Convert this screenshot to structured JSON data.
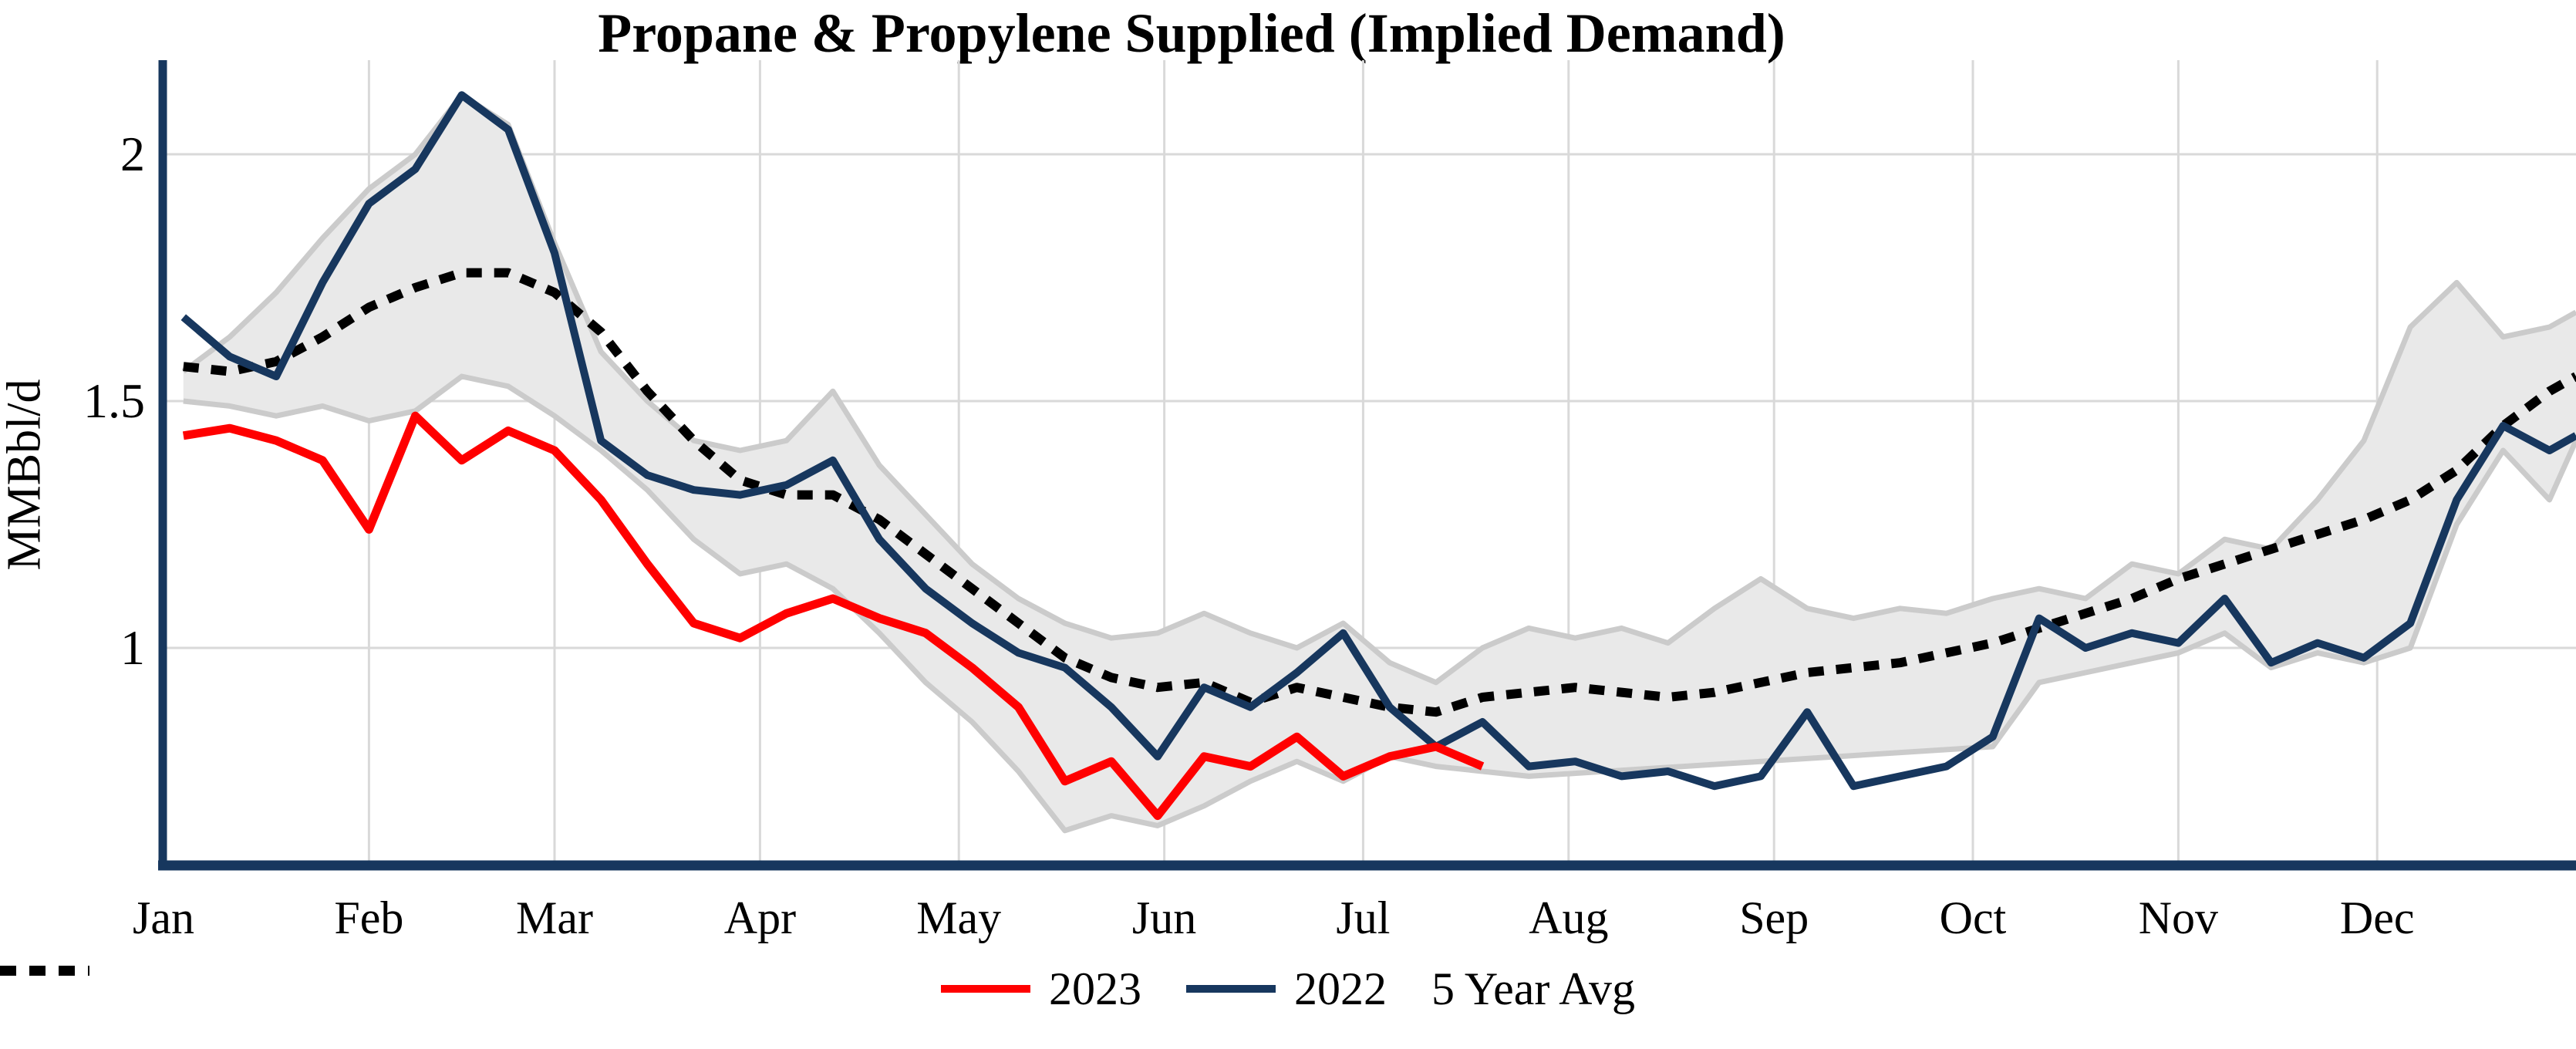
{
  "title": "Propane & Propylene Supplied (Implied Demand)",
  "y_axis": {
    "label": "MMBbl/d",
    "ticks": [
      "2",
      "1.5",
      "1"
    ],
    "tick_values": [
      2,
      1.5,
      1
    ]
  },
  "x_axis": {
    "months": [
      "Jan",
      "Feb",
      "Mar",
      "Apr",
      "May",
      "Jun",
      "Jul",
      "Aug",
      "Sep",
      "Oct",
      "Nov",
      "Dec"
    ],
    "month_start_days": [
      0,
      31,
      59,
      90,
      120,
      151,
      181,
      212,
      243,
      273,
      304,
      334
    ]
  },
  "legend": [
    {
      "label": "2023",
      "style": "solid",
      "color": "#ff0000"
    },
    {
      "label": "2022",
      "style": "solid",
      "color": "#17375e"
    },
    {
      "label": "5 Year Avg",
      "style": "dotted",
      "color": "#000000"
    }
  ],
  "colors": {
    "series_2023": "#ff0000",
    "series_2022": "#17375e",
    "five_year_avg": "#000000",
    "band_fill": "#e9e9e9",
    "band_edge": "#cbcbcb",
    "gridline": "#d9d9d9",
    "axis": "#17375e",
    "text": "#000000",
    "background": "#ffffff"
  },
  "chart_data": {
    "type": "line",
    "title": "Propane & Propylene Supplied (Implied Demand)",
    "xlabel": "",
    "ylabel": "MMBbl/d",
    "x_unit": "day of year (weekly data)",
    "ylim": [
      0.56,
      2.2
    ],
    "xlim_days": [
      0,
      364
    ],
    "grid": true,
    "legend_position": "bottom",
    "week_days": [
      3,
      10,
      17,
      24,
      31,
      38,
      45,
      52,
      59,
      66,
      73,
      80,
      87,
      94,
      101,
      108,
      115,
      122,
      129,
      136,
      143,
      150,
      157,
      164,
      171,
      178,
      185,
      192,
      199,
      206,
      213,
      220,
      227,
      234,
      241,
      248,
      255,
      262,
      269,
      276,
      283,
      290,
      297,
      304,
      311,
      318,
      325,
      332,
      339,
      346,
      353,
      360,
      364
    ],
    "series": [
      {
        "name": "2023",
        "color": "#ff0000",
        "style": "solid",
        "points": 29,
        "values": [
          1.43,
          1.445,
          1.42,
          1.38,
          1.24,
          1.47,
          1.38,
          1.44,
          1.4,
          1.3,
          1.17,
          1.05,
          1.02,
          1.07,
          1.1,
          1.06,
          1.03,
          0.96,
          0.88,
          0.73,
          0.77,
          0.66,
          0.78,
          0.76,
          0.82,
          0.74,
          0.78,
          0.8,
          0.76
        ]
      },
      {
        "name": "2022",
        "color": "#17375e",
        "style": "solid",
        "points": 53,
        "values": [
          1.67,
          1.59,
          1.55,
          1.74,
          1.9,
          1.97,
          2.12,
          2.05,
          1.8,
          1.42,
          1.35,
          1.32,
          1.31,
          1.33,
          1.38,
          1.22,
          1.12,
          1.05,
          0.99,
          0.96,
          0.88,
          0.78,
          0.92,
          0.88,
          0.95,
          1.03,
          0.88,
          0.8,
          0.85,
          0.76,
          0.77,
          0.74,
          0.75,
          0.72,
          0.74,
          0.87,
          0.72,
          0.74,
          0.76,
          0.82,
          1.06,
          1.0,
          1.03,
          1.01,
          1.1,
          0.97,
          1.01,
          0.98,
          1.05,
          1.3,
          1.45,
          1.4,
          1.43
        ]
      },
      {
        "name": "5 Year Avg",
        "color": "#000000",
        "style": "dotted",
        "points": 53,
        "values": [
          1.57,
          1.56,
          1.58,
          1.63,
          1.69,
          1.73,
          1.76,
          1.76,
          1.72,
          1.64,
          1.52,
          1.42,
          1.34,
          1.31,
          1.31,
          1.26,
          1.19,
          1.12,
          1.05,
          0.98,
          0.94,
          0.92,
          0.93,
          0.89,
          0.92,
          0.9,
          0.88,
          0.87,
          0.9,
          0.91,
          0.92,
          0.91,
          0.9,
          0.91,
          0.93,
          0.95,
          0.96,
          0.97,
          0.99,
          1.01,
          1.04,
          1.07,
          1.1,
          1.14,
          1.17,
          1.2,
          1.23,
          1.26,
          1.3,
          1.36,
          1.45,
          1.52,
          1.55
        ]
      }
    ],
    "band": {
      "name": "5 Year Range",
      "fill": "#e9e9e9",
      "edge": "#cbcbcb",
      "upper": [
        1.56,
        1.63,
        1.72,
        1.83,
        1.93,
        2.0,
        2.12,
        2.06,
        1.82,
        1.6,
        1.5,
        1.42,
        1.4,
        1.42,
        1.52,
        1.37,
        1.27,
        1.17,
        1.1,
        1.05,
        1.02,
        1.03,
        1.07,
        1.03,
        1.0,
        1.05,
        0.97,
        0.93,
        1.0,
        1.04,
        1.02,
        1.04,
        1.01,
        1.08,
        1.14,
        1.08,
        1.06,
        1.08,
        1.07,
        1.1,
        1.12,
        1.1,
        1.17,
        1.15,
        1.22,
        1.2,
        1.3,
        1.42,
        1.65,
        1.74,
        1.63,
        1.65,
        1.68
      ],
      "lower": [
        1.5,
        1.49,
        1.47,
        1.49,
        1.46,
        1.48,
        1.55,
        1.53,
        1.47,
        1.4,
        1.32,
        1.22,
        1.15,
        1.17,
        1.12,
        1.03,
        0.93,
        0.85,
        0.75,
        0.63,
        0.66,
        0.64,
        0.68,
        0.73,
        0.77,
        0.73,
        0.78,
        0.76,
        0.74,
        0.8,
        0.93,
        0.95,
        0.97,
        0.99,
        1.03,
        0.96,
        0.99,
        0.97,
        1.0,
        1.25,
        1.4,
        1.3,
        1.42
      ],
      "lower_note_days": [
        3,
        10,
        17,
        24,
        31,
        38,
        45,
        52,
        59,
        66,
        73,
        80,
        87,
        94,
        101,
        108,
        115,
        122,
        129,
        136,
        143,
        150,
        157,
        164,
        171,
        178,
        185,
        192,
        206,
        276,
        283,
        290,
        297,
        304,
        311,
        318,
        325,
        332,
        339,
        346,
        353,
        360,
        364
      ]
    }
  }
}
